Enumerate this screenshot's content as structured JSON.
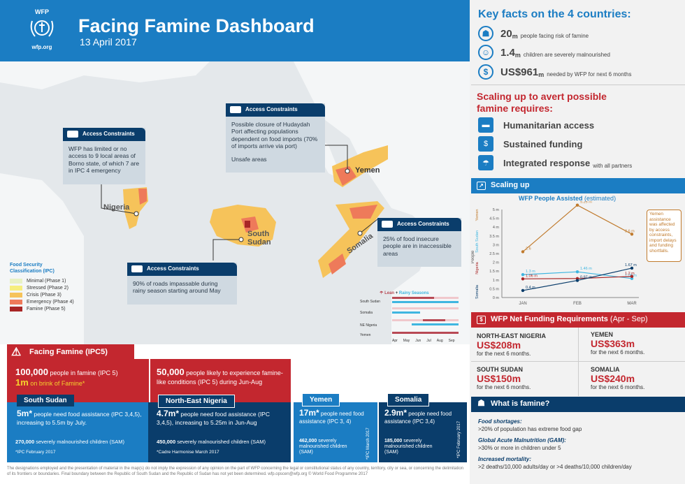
{
  "header": {
    "logo_text": "WFP",
    "logo_url": "wfp.org",
    "title": "Facing Famine Dashboard",
    "date": "13 April 2017"
  },
  "map": {
    "callouts": [
      {
        "id": "nigeria",
        "title": "Access Constraints",
        "bullets": [
          "WFP has limited or no access to 9 local areas of Borno state, of which 7 are in IPC 4 emergency"
        ]
      },
      {
        "id": "yemen",
        "title": "Access Constraints",
        "bullets": [
          "Possible closure of Hudaydah Port affecting populations dependent on food imports (70% of imports arrive via port)",
          "Unsafe areas"
        ]
      },
      {
        "id": "somalia",
        "title": "Access Constraints",
        "bullets": [
          "25% of food insecure people are in inaccessible areas"
        ]
      },
      {
        "id": "south_sudan",
        "title": "Access Constraints",
        "bullets": [
          "90% of roads impassable during rainy season starting around May"
        ]
      }
    ],
    "country_labels": [
      "Nigeria",
      "South Sudan",
      "Yemen",
      "Somalia"
    ],
    "legend": {
      "title": "Food Security Classification (IPC)",
      "items": [
        {
          "label": "Minimal (Phase 1)",
          "color": "#e8f1c4"
        },
        {
          "label": "Stressed (Phase 2)",
          "color": "#f6ee7e"
        },
        {
          "label": "Crisis (Phase 3)",
          "color": "#f6c35a"
        },
        {
          "label": "Emergency (Phase 4)",
          "color": "#ee7a5a"
        },
        {
          "label": "Famine (Phase 5)",
          "color": "#a82626"
        }
      ]
    },
    "seasons": {
      "lean_label": "Lean",
      "rainy_label": "Rainy Seasons",
      "countries": [
        "South Sudan",
        "Somalia",
        "NE Nigeria",
        "Yemen"
      ],
      "months": [
        "Apr",
        "May",
        "Jun",
        "Jul",
        "Aug",
        "Sep"
      ],
      "lean_color": "#b84a55",
      "rainy_color": "#3fb6e0"
    }
  },
  "famine": {
    "head": "Facing Famine (IPC5)",
    "left_num": "100,000",
    "left_text": "people in famine (IPC 5)",
    "left_num2": "1m",
    "left_text2": "on brink of Famine*",
    "right_num": "50,000",
    "right_text": "people likely to experience famine-like conditions (IPC 5) during Jun-Aug"
  },
  "countries": [
    {
      "name": "South Sudan",
      "big": "5m*",
      "text": "people need food assistance (IPC 3,4,5), increasing to 5.5m by July.",
      "sam_num": "270,000",
      "sam_text": "severely malnourished children (SAM)",
      "source": "*IPC February 2017"
    },
    {
      "name": "North-East Nigeria",
      "big": "4.7m*",
      "text": "people need food assistance (IPC 3,4,5), increasing to 5.25m in Jun-Aug",
      "sam_num": "450,000",
      "sam_text": "severely malnourished children (SAM)",
      "source": "*Cadre Harmonise March 2017"
    },
    {
      "name": "Yemen",
      "big": "17m*",
      "text": "people need food assistance (IPC 3, 4)",
      "sam_num": "462,000",
      "sam_text": "severely malnourished children (SAM)",
      "source": "*IPC March 2017"
    },
    {
      "name": "Somalia",
      "big": "2.9m*",
      "text": "people need food assistance (IPC 3,4)",
      "sam_num": "185,000",
      "sam_text": "severely malnourished children (SAM)",
      "source": "*IPC February 2017"
    }
  ],
  "footer": "The designations employed and the presentation of material in the map(s) do not imply the expression of any opinion on the part of WFP concerning the legal or constitutional status of any country, territory, city or sea, or concerning the delimitation of its frontiers or boundaries. Final boundary between the Republic of South Sudan and the Republic of Sudan has not yet been determined. wfp.opscen@wfp.org © World Food Programme 2017",
  "key_facts": {
    "title": "Key facts on the 4 countries:",
    "items": [
      {
        "icon": "people-icon",
        "num": "20",
        "unit": "m",
        "text": "people facing risk of famine"
      },
      {
        "icon": "child-icon",
        "num": "1.4",
        "unit": "m",
        "text": "children are severely malnourished"
      },
      {
        "icon": "dollar-icon",
        "num": "US$961",
        "unit": "m",
        "text": "needed by WFP for next 6 months"
      }
    ]
  },
  "scaling_req": {
    "title": "Scaling up to avert possible famine requires:",
    "items": [
      {
        "label": "Humanitarian access",
        "sub": ""
      },
      {
        "label": "Sustained funding",
        "sub": ""
      },
      {
        "label": "Integrated response",
        "sub": "with all partners"
      }
    ]
  },
  "scaling_up": {
    "head": "Scaling up",
    "chart_title": "WFP People Assisted",
    "chart_title_sub": "(estimated)",
    "ylabel": "People",
    "annotation": "Yemen assistance was affected by access constraints, import delays and funding shortfalls."
  },
  "chart_data": {
    "type": "line",
    "x": [
      "JAN",
      "FEB",
      "MAR"
    ],
    "ylim": [
      0,
      5
    ],
    "yticks": [
      "0 m",
      "0.5 m",
      "1 m",
      "1.5 m",
      "2 m",
      "2.5 m",
      "3 m",
      "3.5 m",
      "4 m",
      "4.5 m",
      "5 m"
    ],
    "series": [
      {
        "name": "Yemen",
        "color": "#c07a2c",
        "values": [
          2.6,
          5.25,
          3.6
        ],
        "labels": [
          "2.6",
          "5.25 m",
          "3.6 m"
        ]
      },
      {
        "name": "South Sudan",
        "color": "#3fb6e0",
        "values": [
          1.3,
          1.46,
          1.08
        ],
        "labels": [
          "1.3 m",
          "1.46 m",
          "1.08 m"
        ]
      },
      {
        "name": "Nigeria",
        "color": "#a82626",
        "values": [
          1.06,
          1.08,
          1.2
        ],
        "labels": [
          "1.06 m",
          "",
          "1.2 m"
        ]
      },
      {
        "name": "Somalia",
        "color": "#0a3d6b",
        "values": [
          0.4,
          0.97,
          1.67
        ],
        "labels": [
          "0.4 m",
          "0.97 m",
          "1.67 m"
        ]
      }
    ]
  },
  "funding": {
    "head": "WFP Net Funding Requirements",
    "head_sub": "(Apr - Sep)",
    "items": [
      {
        "country": "NORTH-EAST NIGERIA",
        "amount": "US$208m",
        "sub": "for the next 6 months."
      },
      {
        "country": "YEMEN",
        "amount": "US$363m",
        "sub": "for the next 6 months."
      },
      {
        "country": "SOUTH SUDAN",
        "amount": "US$150m",
        "sub": "for the next 6 months."
      },
      {
        "country": "SOMALIA",
        "amount": "US$240m",
        "sub": "for the next 6 months."
      }
    ]
  },
  "what_famine": {
    "head": "What is famine?",
    "items": [
      {
        "title": "Food shortages:",
        "text": ">20% of population has extreme food gap"
      },
      {
        "title": "Global Acute Malnutrition (GAM):",
        "text": ">30% or more in children under 5"
      },
      {
        "title": "Increased mortality:",
        "text": ">2 deaths/10,000 adults/day or >4 deaths/10,000 children/day"
      }
    ]
  }
}
